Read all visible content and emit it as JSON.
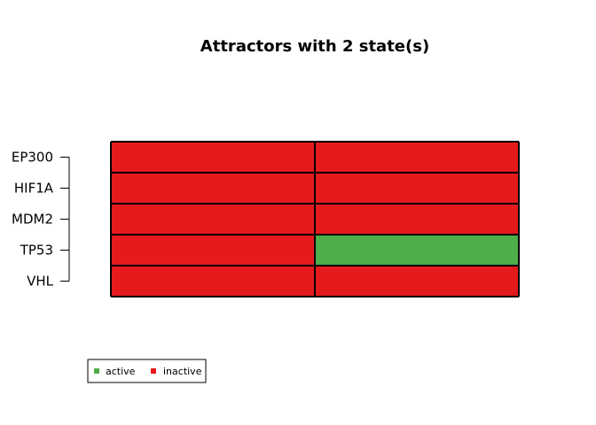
{
  "chart_data": {
    "type": "heatmap",
    "title": "Attractors with 2 state(s)",
    "rows": [
      "EP300",
      "HIF1A",
      "MDM2",
      "TP53",
      "VHL"
    ],
    "columns": 2,
    "matrix": [
      [
        0,
        0
      ],
      [
        0,
        0
      ],
      [
        0,
        0
      ],
      [
        0,
        1
      ],
      [
        0,
        0
      ]
    ],
    "legend": {
      "placement": "bottom-left",
      "items": [
        {
          "label": "active",
          "value": 1,
          "color": "#4daf4a"
        },
        {
          "label": "inactive",
          "value": 0,
          "color": "#e41a1c"
        }
      ]
    },
    "colors": {
      "active": "#4daf4a",
      "inactive": "#e41a1c",
      "border": "#000000"
    }
  }
}
